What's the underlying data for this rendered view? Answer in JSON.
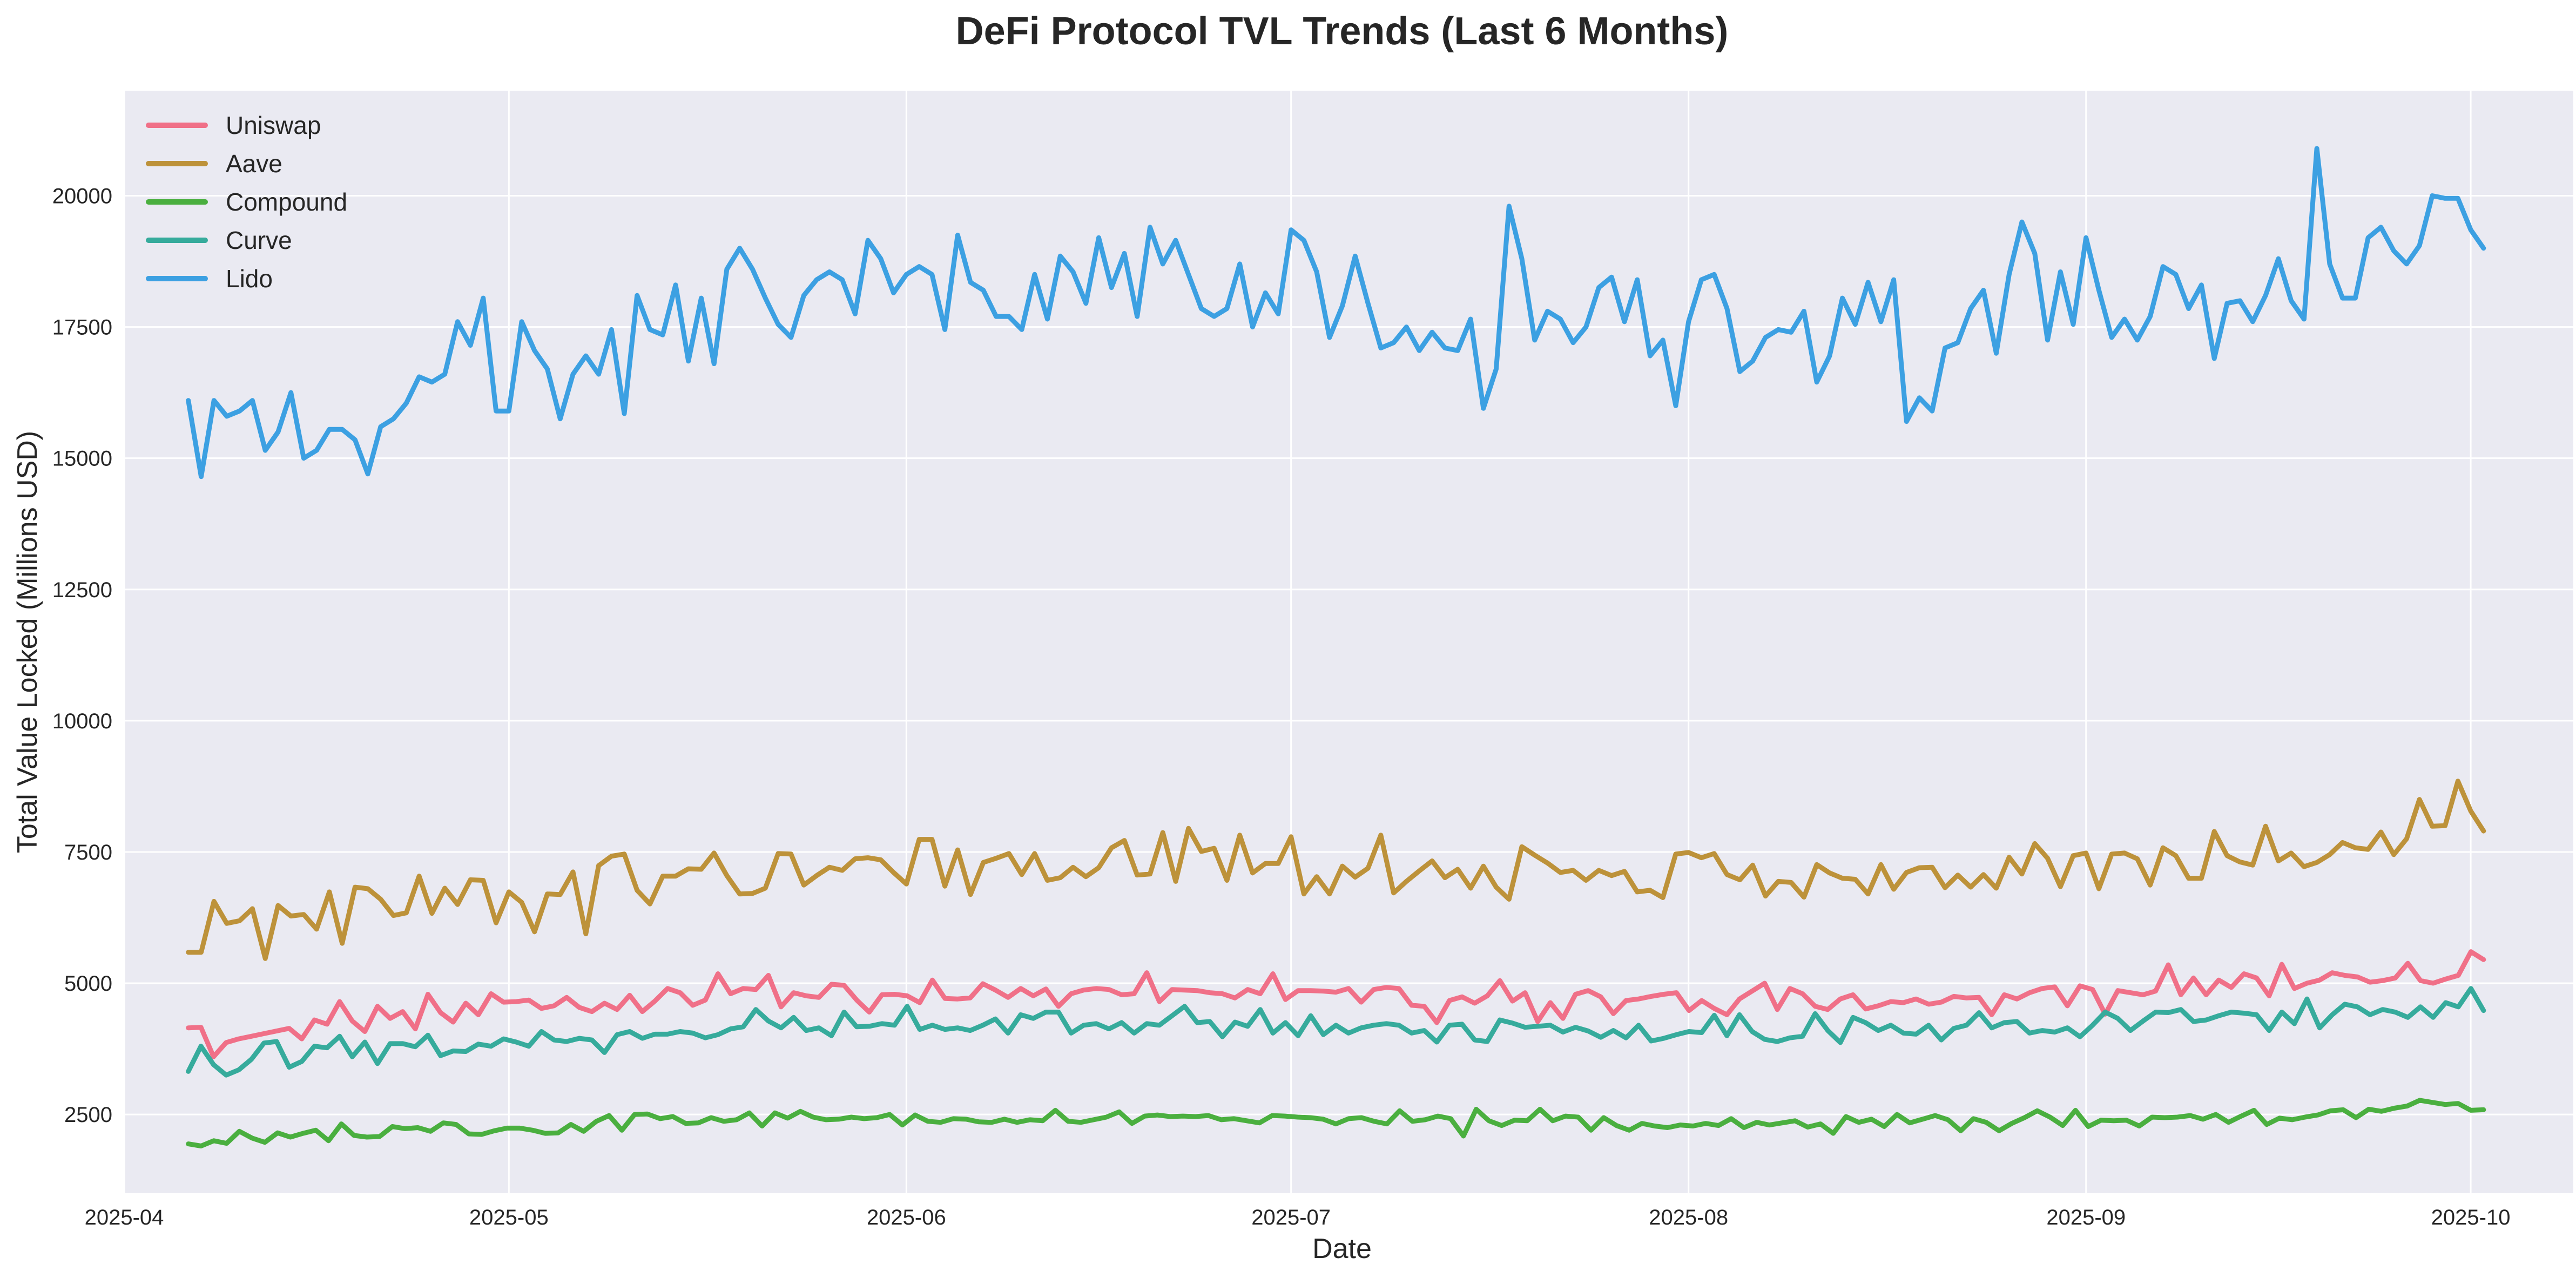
{
  "chart_data": {
    "type": "line",
    "title": "DeFi Protocol TVL Trends (Last 6 Months)",
    "xlabel": "Date",
    "ylabel": "Total Value Locked (Millions USD)",
    "x_start": "2025-04-06",
    "x_end": "2025-10-02",
    "xlim": [
      "2025-04-01",
      "2025-10-09"
    ],
    "ylim": [
      1000,
      22000
    ],
    "x_ticks": [
      "2025-04",
      "2025-05",
      "2025-06",
      "2025-07",
      "2025-08",
      "2025-09",
      "2025-10"
    ],
    "y_ticks": [
      2500,
      5000,
      7500,
      10000,
      12500,
      15000,
      17500,
      20000
    ],
    "grid": true,
    "legend_position": "top-left",
    "background_color": "#eaeaf2",
    "series": [
      {
        "name": "Uniswap",
        "color": "#f07088",
        "values": [
          4150,
          4160,
          3600,
          3870,
          3940,
          3990,
          4040,
          4090,
          4140,
          3940,
          4300,
          4220,
          4650,
          4280,
          4080,
          4560,
          4330,
          4460,
          4130,
          4790,
          4440,
          4260,
          4620,
          4400,
          4800,
          4640,
          4650,
          4680,
          4520,
          4570,
          4730,
          4540,
          4460,
          4620,
          4500,
          4770,
          4460,
          4660,
          4900,
          4820,
          4580,
          4680,
          5180,
          4800,
          4900,
          4880,
          5150,
          4550,
          4820,
          4760,
          4730,
          4980,
          4960,
          4680,
          4450,
          4780,
          4790,
          4760,
          4630,
          5060,
          4710,
          4700,
          4720,
          4990,
          4870,
          4730,
          4900,
          4760,
          4890,
          4560,
          4800,
          4870,
          4900,
          4880,
          4780,
          4800,
          5200,
          4650,
          4880,
          4870,
          4860,
          4820,
          4800,
          4720,
          4880,
          4800,
          5180,
          4690,
          4860,
          4860,
          4850,
          4830,
          4900,
          4640,
          4880,
          4920,
          4900,
          4580,
          4560,
          4250,
          4670,
          4740,
          4620,
          4760,
          5050,
          4660,
          4820,
          4270,
          4630,
          4330,
          4790,
          4860,
          4740,
          4420,
          4670,
          4700,
          4750,
          4790,
          4820,
          4480,
          4670,
          4520,
          4400,
          4700,
          4850,
          5000,
          4500,
          4900,
          4800,
          4560,
          4500,
          4700,
          4780,
          4510,
          4570,
          4650,
          4630,
          4700,
          4600,
          4640,
          4750,
          4720,
          4730,
          4400,
          4780,
          4700,
          4820,
          4900,
          4930,
          4570,
          4950,
          4880,
          4410,
          4860,
          4820,
          4780,
          4850,
          5350,
          4780,
          5100,
          4780,
          5060,
          4920,
          5180,
          5100,
          4760,
          5360,
          4900,
          5000,
          5060,
          5200,
          5150,
          5120,
          5020,
          5050,
          5100,
          5380,
          5050,
          5000,
          5080,
          5150,
          5600,
          5450
        ]
      },
      {
        "name": "Aave",
        "color": "#bd923a",
        "values": [
          5590,
          5590,
          6560,
          6140,
          6190,
          6420,
          5470,
          6480,
          6280,
          6310,
          6030,
          6740,
          5760,
          6830,
          6800,
          6600,
          6290,
          6340,
          7040,
          6330,
          6810,
          6500,
          6970,
          6960,
          6150,
          6740,
          6540,
          5980,
          6700,
          6690,
          7120,
          5940,
          7240,
          7420,
          7460,
          6770,
          6510,
          7040,
          7040,
          7180,
          7170,
          7480,
          7050,
          6700,
          6710,
          6810,
          7470,
          7460,
          6870,
          7050,
          7210,
          7150,
          7370,
          7390,
          7350,
          7110,
          6890,
          7740,
          7740,
          6850,
          7540,
          6690,
          7300,
          7380,
          7470,
          7070,
          7470,
          6960,
          7010,
          7210,
          7030,
          7200,
          7580,
          7720,
          7060,
          7080,
          7870,
          6940,
          7950,
          7510,
          7570,
          6960,
          7820,
          7100,
          7280,
          7280,
          7790,
          6700,
          7030,
          6700,
          7230,
          7020,
          7190,
          7820,
          6720,
          6940,
          7140,
          7330,
          7010,
          7170,
          6810,
          7230,
          6830,
          6600,
          7600,
          7440,
          7290,
          7110,
          7150,
          6960,
          7150,
          7050,
          7130,
          6740,
          6770,
          6630,
          7460,
          7490,
          7390,
          7470,
          7070,
          6970,
          7250,
          6660,
          6940,
          6920,
          6640,
          7260,
          7100,
          7000,
          6980,
          6700,
          7260,
          6790,
          7110,
          7200,
          7210,
          6820,
          7060,
          6830,
          7070,
          6810,
          7400,
          7080,
          7660,
          7380,
          6840,
          7430,
          7480,
          6800,
          7460,
          7480,
          7370,
          6870,
          7580,
          7430,
          7000,
          7000,
          7890,
          7430,
          7310,
          7250,
          7990,
          7330,
          7480,
          7220,
          7300,
          7450,
          7680,
          7580,
          7550,
          7880,
          7450,
          7750,
          8500,
          7990,
          8000,
          8850,
          8280,
          7900
        ]
      },
      {
        "name": "Compound",
        "color": "#4aaf3f",
        "values": [
          1940,
          1900,
          2000,
          1950,
          2180,
          2050,
          1970,
          2150,
          2070,
          2140,
          2200,
          2000,
          2320,
          2100,
          2070,
          2080,
          2270,
          2230,
          2250,
          2180,
          2340,
          2310,
          2130,
          2120,
          2190,
          2240,
          2240,
          2200,
          2140,
          2150,
          2310,
          2180,
          2370,
          2480,
          2200,
          2500,
          2510,
          2420,
          2460,
          2330,
          2340,
          2440,
          2370,
          2400,
          2530,
          2280,
          2530,
          2430,
          2560,
          2450,
          2400,
          2410,
          2450,
          2420,
          2440,
          2500,
          2300,
          2490,
          2370,
          2350,
          2420,
          2410,
          2360,
          2350,
          2410,
          2350,
          2400,
          2380,
          2580,
          2370,
          2350,
          2400,
          2450,
          2550,
          2330,
          2470,
          2490,
          2460,
          2470,
          2460,
          2480,
          2400,
          2420,
          2380,
          2340,
          2480,
          2470,
          2450,
          2440,
          2410,
          2320,
          2420,
          2440,
          2370,
          2320,
          2570,
          2370,
          2400,
          2470,
          2420,
          2090,
          2600,
          2380,
          2290,
          2390,
          2380,
          2600,
          2380,
          2470,
          2450,
          2200,
          2440,
          2290,
          2200,
          2330,
          2280,
          2250,
          2300,
          2280,
          2330,
          2290,
          2420,
          2250,
          2350,
          2300,
          2340,
          2380,
          2260,
          2320,
          2140,
          2460,
          2350,
          2410,
          2270,
          2500,
          2340,
          2410,
          2480,
          2400,
          2190,
          2420,
          2350,
          2190,
          2330,
          2440,
          2570,
          2450,
          2290,
          2580,
          2270,
          2390,
          2380,
          2390,
          2280,
          2450,
          2440,
          2450,
          2480,
          2410,
          2500,
          2350,
          2470,
          2580,
          2310,
          2430,
          2400,
          2450,
          2490,
          2570,
          2590,
          2440,
          2600,
          2560,
          2620,
          2660,
          2770,
          2730,
          2690,
          2710,
          2580,
          2590
        ]
      },
      {
        "name": "Curve",
        "color": "#36ab9c",
        "values": [
          3320,
          3800,
          3450,
          3250,
          3350,
          3550,
          3860,
          3890,
          3400,
          3510,
          3800,
          3770,
          3990,
          3600,
          3880,
          3470,
          3850,
          3850,
          3790,
          4010,
          3620,
          3710,
          3700,
          3840,
          3800,
          3940,
          3880,
          3800,
          4080,
          3920,
          3890,
          3950,
          3920,
          3680,
          4020,
          4080,
          3950,
          4030,
          4030,
          4080,
          4050,
          3960,
          4020,
          4130,
          4170,
          4500,
          4280,
          4150,
          4350,
          4100,
          4150,
          4000,
          4450,
          4170,
          4180,
          4230,
          4200,
          4560,
          4120,
          4200,
          4120,
          4150,
          4100,
          4200,
          4320,
          4050,
          4400,
          4330,
          4450,
          4450,
          4050,
          4200,
          4230,
          4130,
          4250,
          4050,
          4230,
          4200,
          4380,
          4560,
          4250,
          4270,
          3980,
          4260,
          4180,
          4500,
          4050,
          4250,
          4000,
          4380,
          4020,
          4200,
          4050,
          4150,
          4200,
          4230,
          4200,
          4050,
          4100,
          3880,
          4200,
          4220,
          3920,
          3890,
          4300,
          4240,
          4160,
          4180,
          4200,
          4070,
          4160,
          4090,
          3970,
          4100,
          3960,
          4200,
          3900,
          3950,
          4020,
          4080,
          4060,
          4390,
          4000,
          4400,
          4080,
          3930,
          3890,
          3960,
          3990,
          4420,
          4100,
          3870,
          4350,
          4250,
          4100,
          4200,
          4050,
          4030,
          4200,
          3920,
          4140,
          4200,
          4440,
          4150,
          4250,
          4270,
          4050,
          4100,
          4070,
          4150,
          3980,
          4200,
          4450,
          4330,
          4100,
          4280,
          4450,
          4440,
          4500,
          4270,
          4300,
          4380,
          4450,
          4430,
          4400,
          4100,
          4450,
          4230,
          4700,
          4150,
          4400,
          4600,
          4550,
          4400,
          4500,
          4450,
          4350,
          4550,
          4350,
          4630,
          4550,
          4900,
          4480
        ]
      },
      {
        "name": "Lido",
        "color": "#3ca0e2",
        "values": [
          16100,
          14650,
          16100,
          15800,
          15900,
          16100,
          15150,
          15500,
          16250,
          15000,
          15150,
          15550,
          15550,
          15350,
          14700,
          15600,
          15750,
          16050,
          16550,
          16450,
          16600,
          17600,
          17150,
          18050,
          15900,
          15900,
          17600,
          17050,
          16700,
          15750,
          16600,
          16950,
          16600,
          17450,
          15850,
          18100,
          17450,
          17350,
          18300,
          16850,
          18050,
          16800,
          18600,
          19000,
          18600,
          18050,
          17550,
          17300,
          18100,
          18400,
          18550,
          18400,
          17750,
          19150,
          18800,
          18150,
          18500,
          18650,
          18500,
          17450,
          19250,
          18350,
          18200,
          17700,
          17700,
          17450,
          18500,
          17650,
          18850,
          18550,
          17950,
          19200,
          18250,
          18900,
          17700,
          19400,
          18700,
          19150,
          18500,
          17850,
          17700,
          17850,
          18700,
          17500,
          18150,
          17750,
          19350,
          19150,
          18550,
          17300,
          17900,
          18850,
          17950,
          17100,
          17200,
          17500,
          17050,
          17400,
          17100,
          17050,
          17650,
          15950,
          16700,
          19800,
          18800,
          17250,
          17800,
          17650,
          17200,
          17500,
          18250,
          18450,
          17600,
          18400,
          16950,
          17250,
          16000,
          17600,
          18400,
          18500,
          17850,
          16650,
          16850,
          17300,
          17450,
          17400,
          17800,
          16450,
          16950,
          18050,
          17550,
          18350,
          17600,
          18400,
          15700,
          16150,
          15900,
          17100,
          17200,
          17850,
          18200,
          17000,
          18500,
          19500,
          18900,
          17250,
          18550,
          17550,
          19200,
          18200,
          17300,
          17650,
          17250,
          17700,
          18650,
          18500,
          17850,
          18300,
          16900,
          17950,
          18000,
          17600,
          18100,
          18800,
          18000,
          17650,
          20900,
          18700,
          18050,
          18050,
          19200,
          19400,
          18950,
          18700,
          19050,
          20000,
          19950,
          19950,
          19350,
          19000
        ]
      }
    ]
  }
}
